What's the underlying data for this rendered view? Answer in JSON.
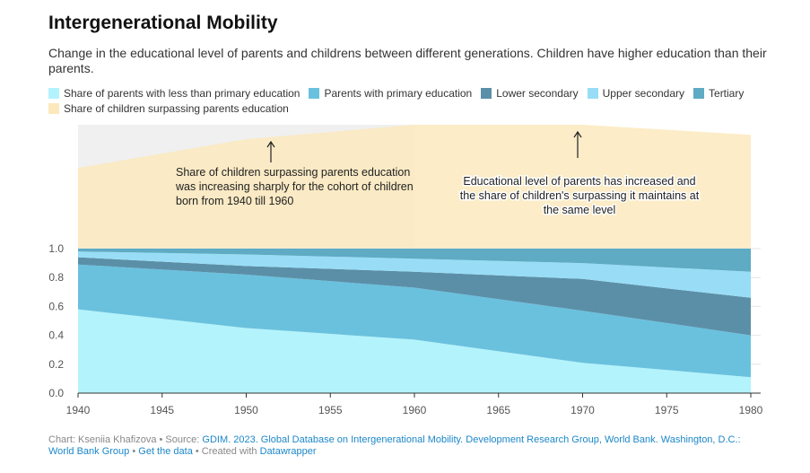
{
  "title": "Intergenerational Mobility",
  "subtitle": "Change in the educational level of parents and childrens between different generations. Children have higher education than their parents.",
  "colors": {
    "less_primary": "#b3f3fb",
    "primary": "#6ac1de",
    "lower_secondary": "#5b8fa8",
    "upper_secondary": "#98ddf5",
    "tertiary": "#5eabc3",
    "surpassing": "#fbe9bd",
    "highlight_bg": "#f0f0f0"
  },
  "legend": [
    {
      "label": "Share of parents with less than primary education",
      "color": "#b3f3fb"
    },
    {
      "label": "Parents with primary education",
      "color": "#6ac1de"
    },
    {
      "label": "Lower secondary",
      "color": "#5b8fa8"
    },
    {
      "label": "Upper secondary",
      "color": "#98ddf5"
    },
    {
      "label": "Tertiary",
      "color": "#5eabc3"
    },
    {
      "label": "Share of children surpassing parents education",
      "color": "#fbe9bd"
    }
  ],
  "chart_data": {
    "type": "area",
    "x": [
      1940,
      1950,
      1960,
      1970,
      1980
    ],
    "series": [
      {
        "name": "Share of parents with less than primary education",
        "values": [
          0.58,
          0.45,
          0.37,
          0.21,
          0.11
        ]
      },
      {
        "name": "Parents with primary education",
        "values": [
          0.31,
          0.37,
          0.36,
          0.36,
          0.29
        ]
      },
      {
        "name": "Lower secondary",
        "values": [
          0.05,
          0.06,
          0.11,
          0.22,
          0.26
        ]
      },
      {
        "name": "Upper secondary",
        "values": [
          0.04,
          0.08,
          0.09,
          0.11,
          0.18
        ]
      },
      {
        "name": "Tertiary",
        "values": [
          0.02,
          0.04,
          0.07,
          0.1,
          0.16
        ]
      }
    ],
    "surpassing": {
      "name": "Share of children surpassing parents education",
      "values": [
        0.56,
        0.76,
        0.86,
        0.86,
        0.79
      ]
    },
    "highlight_range": [
      1940,
      1960
    ],
    "xticks": [
      "1940",
      "1945",
      "1950",
      "1955",
      "1960",
      "1965",
      "1970",
      "1975",
      "1980"
    ],
    "yticks": [
      "0.0",
      "0.2",
      "0.4",
      "0.6",
      "0.8",
      "1.0"
    ],
    "xlim": [
      1940,
      1980
    ],
    "ylim": [
      0,
      1
    ],
    "annotations": [
      {
        "lines": [
          "Share of children surpassing parents education",
          "was increasing sharply for the cohort of children",
          "born from 1940 till 1960"
        ]
      },
      {
        "lines": [
          "Educational level of parents has increased and",
          "the share of children's surpassing it maintains at",
          "the same level"
        ]
      }
    ]
  },
  "footer": {
    "prefix": "Chart: Kseniia Khafizova • Source: ",
    "source_link": "GDIM. 2023. Global Database on Intergenerational Mobility. Development Research Group, World Bank. Washington, D.C.: World Bank Group",
    "sep1": " • ",
    "get_data": "Get the data",
    "sep2": " • Created with ",
    "datawrapper": "Datawrapper"
  }
}
